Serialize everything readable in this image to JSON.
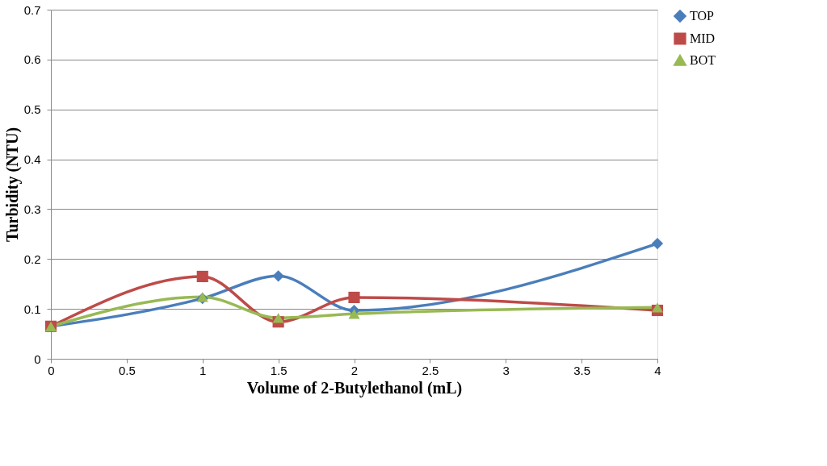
{
  "chart_data": {
    "type": "line",
    "xlabel": "Volume of 2-Butylethanol (mL)",
    "ylabel": "Turbidity (NTU)",
    "x": [
      0,
      1,
      1.5,
      2,
      4
    ],
    "series": [
      {
        "name": "TOP",
        "color": "#4a7ebb",
        "marker": "diamond",
        "values": [
          0.065,
          0.121,
          0.166,
          0.097,
          0.231
        ]
      },
      {
        "name": "MID",
        "color": "#be4b48",
        "marker": "square",
        "values": [
          0.065,
          0.165,
          0.074,
          0.123,
          0.097
        ]
      },
      {
        "name": "BOT",
        "color": "#98b954",
        "marker": "triangle",
        "values": [
          0.065,
          0.124,
          0.082,
          0.09,
          0.103
        ]
      }
    ],
    "xlim": [
      0,
      4
    ],
    "xticks": [
      0,
      0.5,
      1,
      1.5,
      2,
      2.5,
      3,
      3.5,
      4
    ],
    "ylim": [
      0,
      0.7
    ],
    "yticks": [
      0,
      0.1,
      0.2,
      0.3,
      0.4,
      0.5,
      0.6,
      0.7
    ],
    "grid": "y",
    "legend": "right",
    "line_style": "solid"
  }
}
